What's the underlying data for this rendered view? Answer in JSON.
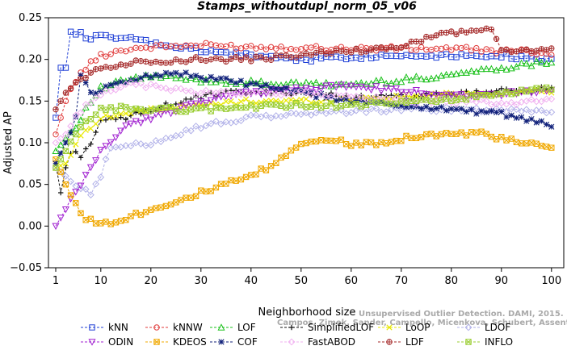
{
  "chart_data": {
    "type": "line",
    "title": "Stamps_withoutdupl_norm_05_v06",
    "xlabel": "Neighborhood size",
    "ylabel": "Adjusted AP",
    "xlim": [
      1,
      100
    ],
    "ylim": [
      -0.05,
      0.25
    ],
    "xticks": [
      "1",
      "10",
      "20",
      "30",
      "40",
      "50",
      "60",
      "70",
      "80",
      "90",
      "100"
    ],
    "xtick_values": [
      1,
      10,
      20,
      30,
      40,
      50,
      60,
      70,
      80,
      90,
      100
    ],
    "yticks": [
      "−0.05",
      "0.00",
      "0.05",
      "0.10",
      "0.15",
      "0.20",
      "0.25"
    ],
    "ytick_values": [
      -0.05,
      0.0,
      0.05,
      0.1,
      0.15,
      0.2,
      0.25
    ],
    "grid": false,
    "legend_position": "bottom",
    "watermark": [
      "Unsupervised Outlier Detection. DAMI, 2015.",
      "Campos, Zimek, Sander, Campello, Micenkova, Schubert, Assent, Houle"
    ],
    "series": [
      {
        "name": "kNN",
        "color": "#1f3fd6",
        "marker": "square",
        "anchors": [
          [
            1,
            0.13
          ],
          [
            2,
            0.19
          ],
          [
            3,
            0.19
          ],
          [
            4,
            0.235
          ],
          [
            6,
            0.23
          ],
          [
            8,
            0.225
          ],
          [
            10,
            0.228
          ],
          [
            15,
            0.225
          ],
          [
            20,
            0.22
          ],
          [
            25,
            0.215
          ],
          [
            30,
            0.21
          ],
          [
            40,
            0.205
          ],
          [
            50,
            0.2
          ],
          [
            60,
            0.203
          ],
          [
            70,
            0.205
          ],
          [
            80,
            0.205
          ],
          [
            90,
            0.205
          ],
          [
            100,
            0.198
          ]
        ]
      },
      {
        "name": "kNNW",
        "color": "#e03a3a",
        "marker": "circle",
        "anchors": [
          [
            1,
            0.11
          ],
          [
            3,
            0.15
          ],
          [
            5,
            0.175
          ],
          [
            7,
            0.19
          ],
          [
            10,
            0.205
          ],
          [
            15,
            0.212
          ],
          [
            20,
            0.215
          ],
          [
            30,
            0.217
          ],
          [
            40,
            0.215
          ],
          [
            50,
            0.214
          ],
          [
            60,
            0.213
          ],
          [
            70,
            0.213
          ],
          [
            80,
            0.213
          ],
          [
            90,
            0.21
          ],
          [
            100,
            0.208
          ]
        ]
      },
      {
        "name": "LOF",
        "color": "#19c019",
        "marker": "triangle",
        "anchors": [
          [
            1,
            0.09
          ],
          [
            3,
            0.105
          ],
          [
            5,
            0.12
          ],
          [
            8,
            0.15
          ],
          [
            10,
            0.165
          ],
          [
            15,
            0.175
          ],
          [
            20,
            0.18
          ],
          [
            30,
            0.175
          ],
          [
            40,
            0.172
          ],
          [
            50,
            0.17
          ],
          [
            60,
            0.17
          ],
          [
            70,
            0.175
          ],
          [
            80,
            0.182
          ],
          [
            90,
            0.19
          ],
          [
            100,
            0.198
          ]
        ]
      },
      {
        "name": "SimplifiedLOF",
        "color": "#111111",
        "marker": "plus",
        "anchors": [
          [
            1,
            0.075
          ],
          [
            2,
            0.04
          ],
          [
            3,
            0.07
          ],
          [
            4,
            0.09
          ],
          [
            6,
            0.085
          ],
          [
            8,
            0.1
          ],
          [
            10,
            0.125
          ],
          [
            15,
            0.13
          ],
          [
            20,
            0.14
          ],
          [
            25,
            0.148
          ],
          [
            30,
            0.155
          ],
          [
            35,
            0.16
          ],
          [
            40,
            0.16
          ],
          [
            50,
            0.16
          ],
          [
            60,
            0.155
          ],
          [
            70,
            0.155
          ],
          [
            80,
            0.158
          ],
          [
            90,
            0.162
          ],
          [
            100,
            0.165
          ]
        ]
      },
      {
        "name": "LoOP",
        "color": "#e8e800",
        "marker": "cross",
        "anchors": [
          [
            1,
            0.07
          ],
          [
            3,
            0.075
          ],
          [
            5,
            0.1
          ],
          [
            8,
            0.12
          ],
          [
            10,
            0.13
          ],
          [
            15,
            0.135
          ],
          [
            20,
            0.14
          ],
          [
            30,
            0.145
          ],
          [
            40,
            0.15
          ],
          [
            50,
            0.15
          ],
          [
            60,
            0.152
          ],
          [
            70,
            0.155
          ],
          [
            80,
            0.158
          ],
          [
            90,
            0.16
          ],
          [
            100,
            0.163
          ]
        ]
      },
      {
        "name": "LDOF",
        "color": "#b0b0e8",
        "marker": "diamond",
        "anchors": [
          [
            1,
            0.07
          ],
          [
            3,
            0.06
          ],
          [
            5,
            0.05
          ],
          [
            7,
            0.045
          ],
          [
            8,
            0.04
          ],
          [
            10,
            0.06
          ],
          [
            12,
            0.095
          ],
          [
            15,
            0.095
          ],
          [
            20,
            0.1
          ],
          [
            30,
            0.12
          ],
          [
            40,
            0.13
          ],
          [
            50,
            0.135
          ],
          [
            60,
            0.138
          ],
          [
            70,
            0.14
          ],
          [
            80,
            0.14
          ],
          [
            90,
            0.14
          ],
          [
            100,
            0.138
          ]
        ]
      },
      {
        "name": "ODIN",
        "color": "#a020d0",
        "marker": "triangle-down",
        "anchors": [
          [
            1,
            0.0
          ],
          [
            3,
            0.02
          ],
          [
            5,
            0.04
          ],
          [
            7,
            0.06
          ],
          [
            10,
            0.09
          ],
          [
            15,
            0.12
          ],
          [
            20,
            0.13
          ],
          [
            25,
            0.14
          ],
          [
            30,
            0.15
          ],
          [
            40,
            0.16
          ],
          [
            50,
            0.165
          ],
          [
            60,
            0.168
          ],
          [
            70,
            0.162
          ],
          [
            80,
            0.158
          ],
          [
            90,
            0.158
          ],
          [
            100,
            0.165
          ]
        ]
      },
      {
        "name": "KDEOS",
        "color": "#f0a800",
        "marker": "square-x",
        "anchors": [
          [
            1,
            0.08
          ],
          [
            3,
            0.05
          ],
          [
            5,
            0.025
          ],
          [
            7,
            0.01
          ],
          [
            9,
            0.003
          ],
          [
            12,
            0.005
          ],
          [
            15,
            0.01
          ],
          [
            20,
            0.02
          ],
          [
            25,
            0.03
          ],
          [
            30,
            0.04
          ],
          [
            35,
            0.05
          ],
          [
            40,
            0.06
          ],
          [
            45,
            0.075
          ],
          [
            48,
            0.09
          ],
          [
            50,
            0.1
          ],
          [
            55,
            0.105
          ],
          [
            60,
            0.098
          ],
          [
            65,
            0.1
          ],
          [
            70,
            0.105
          ],
          [
            75,
            0.11
          ],
          [
            80,
            0.11
          ],
          [
            85,
            0.112
          ],
          [
            90,
            0.105
          ],
          [
            95,
            0.098
          ],
          [
            100,
            0.095
          ]
        ]
      },
      {
        "name": "COF",
        "color": "#10207a",
        "marker": "asterisk",
        "anchors": [
          [
            1,
            0.075
          ],
          [
            3,
            0.1
          ],
          [
            5,
            0.13
          ],
          [
            6,
            0.18
          ],
          [
            8,
            0.16
          ],
          [
            10,
            0.16
          ],
          [
            12,
            0.17
          ],
          [
            15,
            0.175
          ],
          [
            20,
            0.18
          ],
          [
            25,
            0.185
          ],
          [
            30,
            0.178
          ],
          [
            35,
            0.175
          ],
          [
            40,
            0.17
          ],
          [
            45,
            0.165
          ],
          [
            50,
            0.16
          ],
          [
            60,
            0.15
          ],
          [
            70,
            0.145
          ],
          [
            80,
            0.14
          ],
          [
            90,
            0.135
          ],
          [
            100,
            0.12
          ]
        ]
      },
      {
        "name": "FastABOD",
        "color": "#f0b0f0",
        "marker": "diamond",
        "anchors": [
          [
            1,
            0.1
          ],
          [
            3,
            0.11
          ],
          [
            5,
            0.13
          ],
          [
            8,
            0.15
          ],
          [
            10,
            0.16
          ],
          [
            15,
            0.17
          ],
          [
            20,
            0.168
          ],
          [
            30,
            0.16
          ],
          [
            40,
            0.16
          ],
          [
            50,
            0.16
          ],
          [
            60,
            0.155
          ],
          [
            70,
            0.15
          ],
          [
            80,
            0.15
          ],
          [
            90,
            0.148
          ],
          [
            100,
            0.15
          ]
        ]
      },
      {
        "name": "LDF",
        "color": "#a52a2a",
        "marker": "circle-plus",
        "anchors": [
          [
            1,
            0.14
          ],
          [
            3,
            0.16
          ],
          [
            5,
            0.17
          ],
          [
            7,
            0.18
          ],
          [
            10,
            0.19
          ],
          [
            15,
            0.195
          ],
          [
            20,
            0.198
          ],
          [
            30,
            0.2
          ],
          [
            40,
            0.2
          ],
          [
            50,
            0.205
          ],
          [
            60,
            0.21
          ],
          [
            70,
            0.215
          ],
          [
            75,
            0.225
          ],
          [
            80,
            0.232
          ],
          [
            85,
            0.235
          ],
          [
            88,
            0.235
          ],
          [
            90,
            0.21
          ],
          [
            100,
            0.212
          ]
        ]
      },
      {
        "name": "INFLO",
        "color": "#9acd32",
        "marker": "square-x",
        "anchors": [
          [
            1,
            0.07
          ],
          [
            3,
            0.09
          ],
          [
            5,
            0.11
          ],
          [
            8,
            0.13
          ],
          [
            10,
            0.14
          ],
          [
            15,
            0.142
          ],
          [
            20,
            0.14
          ],
          [
            30,
            0.14
          ],
          [
            40,
            0.143
          ],
          [
            50,
            0.145
          ],
          [
            60,
            0.145
          ],
          [
            70,
            0.148
          ],
          [
            80,
            0.152
          ],
          [
            90,
            0.158
          ],
          [
            100,
            0.165
          ]
        ]
      }
    ]
  }
}
